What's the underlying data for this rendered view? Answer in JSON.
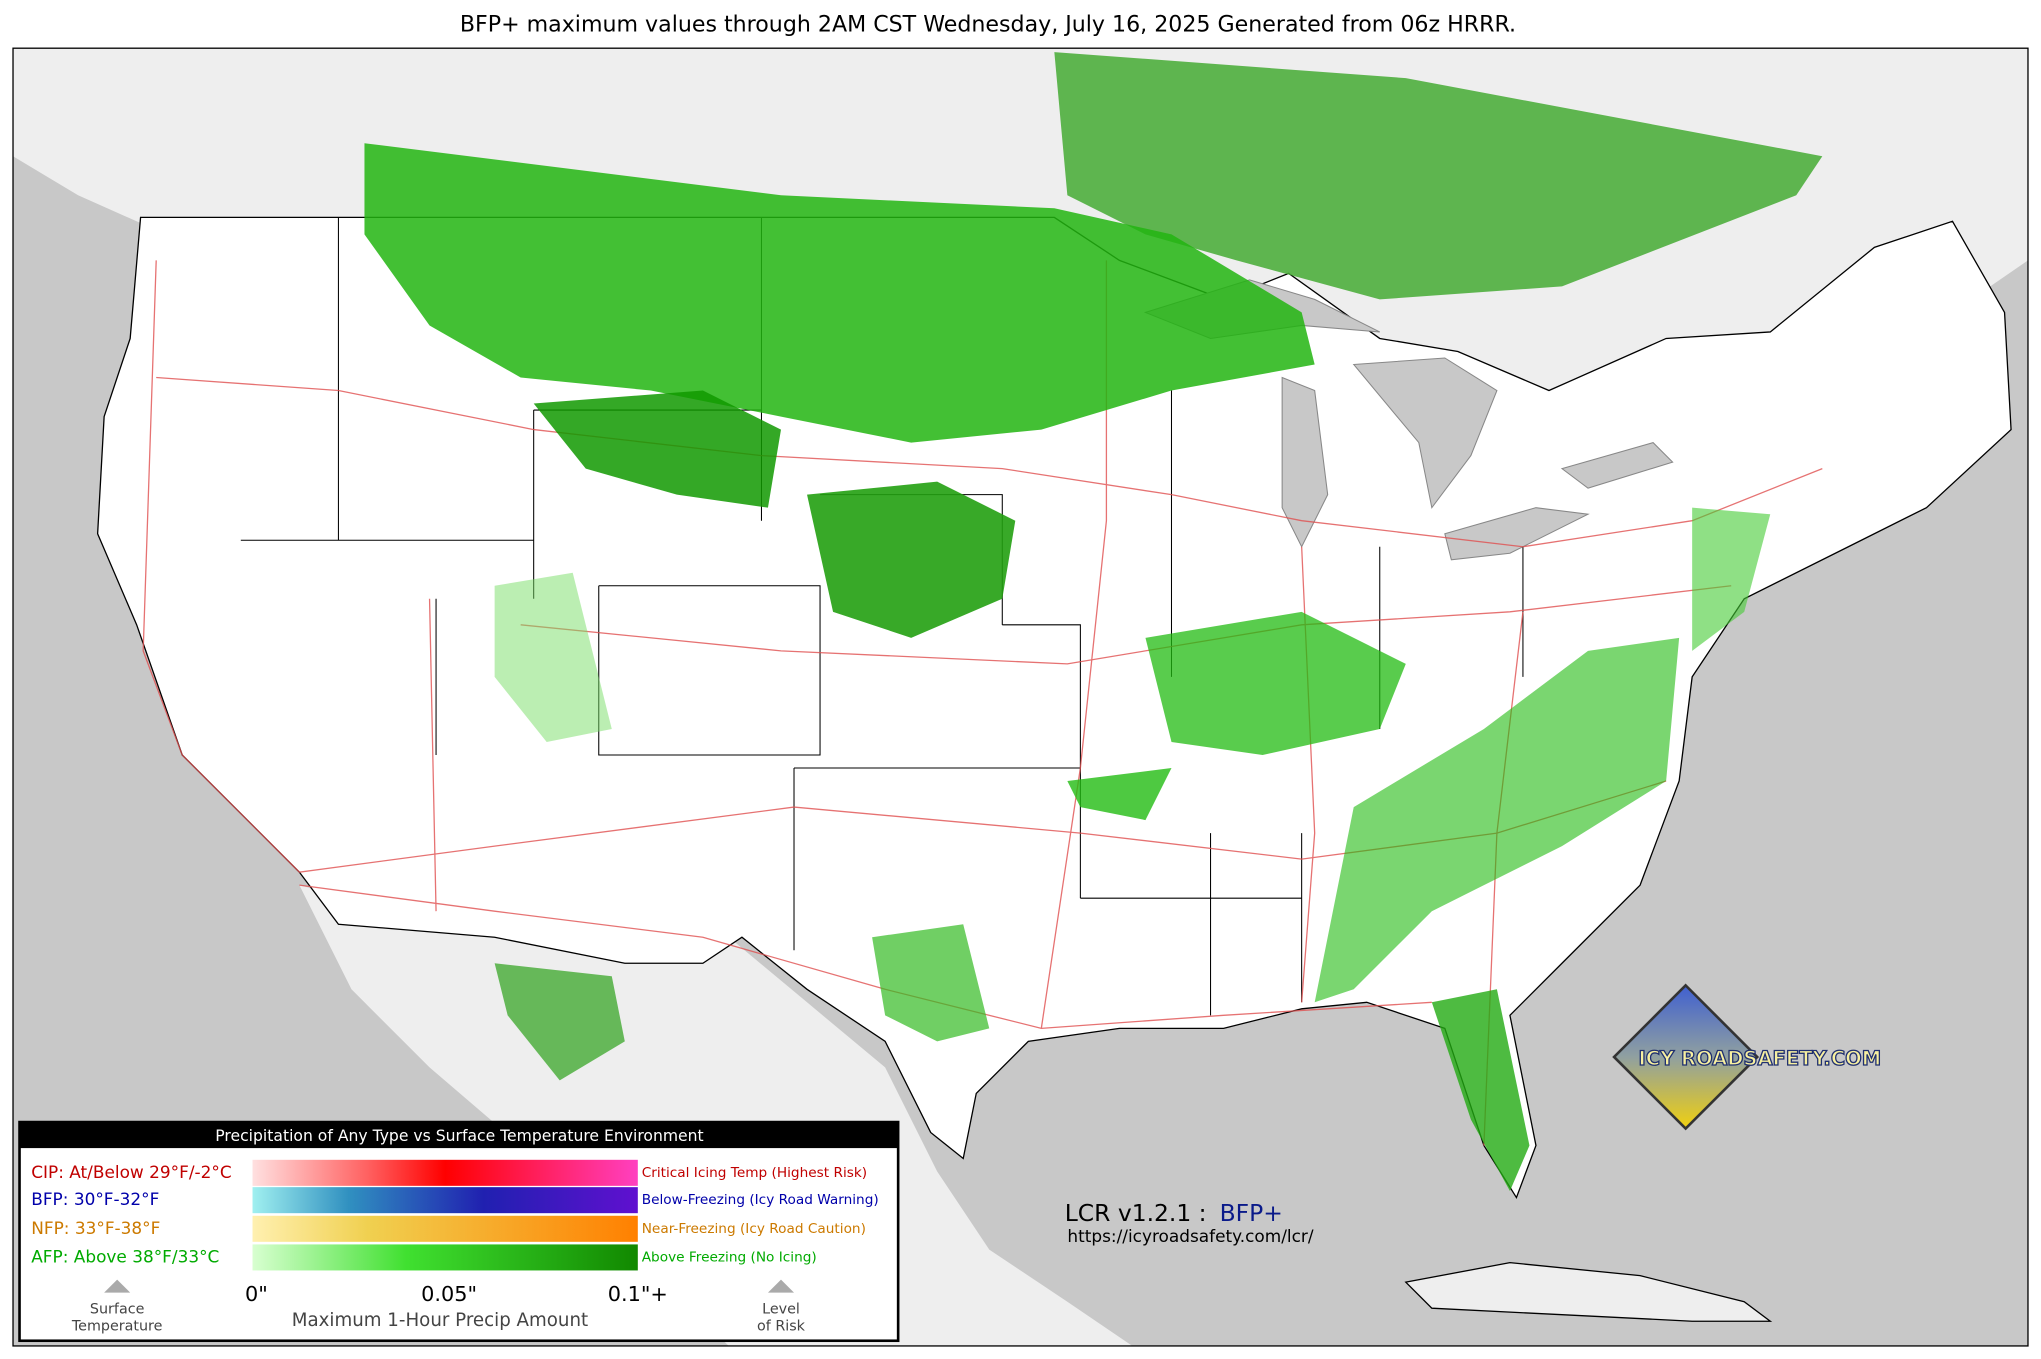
{
  "title": "BFP+ maximum values through 2AM CST Wednesday, July 16, 2025 Generated from 06z HRRR.",
  "legend": {
    "header": "Precipitation of Any Type vs Surface Temperature Environment",
    "rows": [
      {
        "label": "CIP: At/Below 29°F/-2°C",
        "description": "Critical Icing Temp (Highest Risk)"
      },
      {
        "label": "BFP: 30°F-32°F",
        "description": "Below-Freezing (Icy Road Warning)"
      },
      {
        "label": "NFP: 33°F-38°F",
        "description": "Near-Freezing (Icy Road Caution)"
      },
      {
        "label": "AFP: Above 38°F/33°C",
        "description": "Above Freezing (No Icing)"
      }
    ],
    "ticks": [
      "0\"",
      "0.05\"",
      "0.1\"+"
    ],
    "axis_label": "Maximum 1-Hour Precip Amount",
    "left_caption": [
      "Surface",
      "Temperature"
    ],
    "right_caption": [
      "Level",
      "of Risk"
    ]
  },
  "footer": {
    "version": "LCR v1.2.1 :",
    "product": "BFP+",
    "url": "https://icyroadsafety.com/lcr/"
  },
  "logo": "ICY ROADSAFETY.COM"
}
